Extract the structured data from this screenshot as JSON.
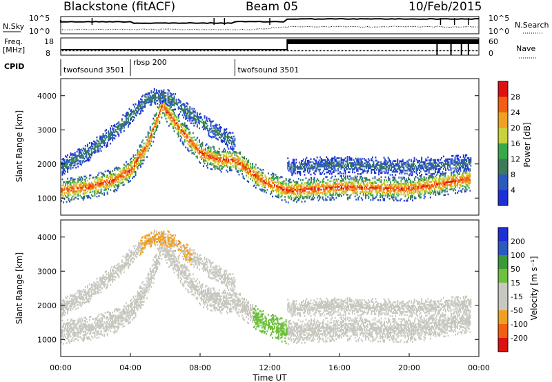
{
  "header": {
    "station": "Blackstone (fitACF)",
    "beam": "Beam 05",
    "date": "10/Feb/2015"
  },
  "top_panels": {
    "nsky_label": "N.Sky",
    "nsky_ticks": [
      "10^5",
      "10^0"
    ],
    "nsearch_label": "N.Search",
    "nsearch_ticks": [
      "10^5",
      "10^0"
    ],
    "freq_label_top": "Freq.",
    "freq_label_unit": "[MHz]",
    "freq_ticks": [
      "18",
      "8"
    ],
    "nave_label": "Nave",
    "nave_ticks": [
      "60",
      "0"
    ],
    "cpid_label": "CPID",
    "cpid_segments": [
      {
        "name": "twofsound 3501",
        "start": 0.0,
        "end": 4.0
      },
      {
        "name": "rbsp 200",
        "start": 4.0,
        "end": 10.0
      },
      {
        "name": "twofsound 3501",
        "start": 10.0,
        "end": 24.0
      }
    ]
  },
  "chart_data": [
    {
      "type": "heatmap",
      "name": "power",
      "ylabel": "Slant Range [km]",
      "xlabel": "",
      "xlim": [
        0,
        24
      ],
      "ylim": [
        500,
        4500
      ],
      "yticks": [
        "1000",
        "2000",
        "3000",
        "4000"
      ],
      "colorbar": {
        "label": "Power [dB]",
        "ticks": [
          "28",
          "24",
          "20",
          "16",
          "12",
          "8",
          "4"
        ],
        "range": [
          0,
          30
        ],
        "colors": [
          "#1f2fd8",
          "#2a5ac0",
          "#3e7a5a",
          "#39a848",
          "#c8d23a",
          "#f0a020",
          "#f06010",
          "#e01010"
        ]
      },
      "bands": [
        {
          "t": [
            0,
            1.5,
            3.0,
            4.0,
            5.0,
            5.8,
            7.0,
            8.0,
            9.0,
            10.0,
            11.5,
            13.0,
            16.0,
            20.0,
            23.5
          ],
          "r": [
            1200,
            1300,
            1500,
            1800,
            2600,
            3700,
            2900,
            2300,
            2100,
            2100,
            1500,
            1200,
            1300,
            1250,
            1550
          ],
          "power": 26
        },
        {
          "t": [
            0,
            1.5,
            3.0,
            4.0,
            5.0,
            6.0,
            8.0,
            10.0
          ],
          "r": [
            1900,
            2300,
            2900,
            3400,
            3900,
            4000,
            3200,
            2600
          ],
          "power": 10
        },
        {
          "t": [
            13.0,
            16.0,
            20.0,
            23.5
          ],
          "r": [
            1900,
            1950,
            1900,
            2000
          ],
          "power": 8
        }
      ]
    },
    {
      "type": "heatmap",
      "name": "velocity",
      "ylabel": "Slant Range [km]",
      "xlabel": "Time UT",
      "xlim": [
        0,
        24
      ],
      "ylim": [
        500,
        4500
      ],
      "yticks": [
        "1000",
        "2000",
        "3000",
        "4000"
      ],
      "xticks": [
        "00:00",
        "04:00",
        "08:00",
        "12:00",
        "16:00",
        "20:00",
        "00:00"
      ],
      "colorbar": {
        "label": "Velocity [m s⁻¹]",
        "ticks": [
          "200",
          "100",
          "50",
          "15",
          "-15",
          "-50",
          "-100",
          "-200"
        ],
        "range": [
          -250,
          250
        ],
        "colors": [
          "#e01010",
          "#f06010",
          "#f0a020",
          "#c8c8c0",
          "#c8c8c0",
          "#70c040",
          "#3a9a3a",
          "#2a5ac0",
          "#1f2fd8"
        ]
      }
    }
  ],
  "colors": {
    "frame": "#000000",
    "ground": "#c8c8c0"
  }
}
